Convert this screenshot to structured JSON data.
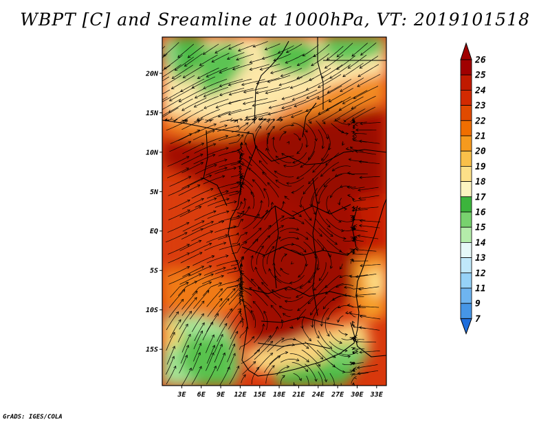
{
  "title": "WBPT [C] and Sreamline at 1000hPa, VT: 2019101518",
  "footer": "GrADS: IGES/COLA",
  "map": {
    "lat_labels": [
      "20N",
      "15N",
      "10N",
      "5N",
      "EQ",
      "5S",
      "10S",
      "15S"
    ],
    "lat_values": [
      20,
      15,
      10,
      5,
      0,
      -5,
      -10,
      -15
    ],
    "lon_labels": [
      "3E",
      "6E",
      "9E",
      "12E",
      "15E",
      "18E",
      "21E",
      "24E",
      "27E",
      "30E",
      "33E"
    ],
    "lon_values": [
      3,
      6,
      9,
      12,
      15,
      18,
      21,
      24,
      27,
      30,
      33
    ],
    "lon_range": [
      0,
      34.5
    ],
    "lat_range": [
      -19.6,
      24.6
    ]
  },
  "colorbar": {
    "labels": [
      "26",
      "25",
      "24",
      "23",
      "22",
      "21",
      "20",
      "19",
      "18",
      "17",
      "16",
      "15",
      "14",
      "13",
      "12",
      "11",
      "9",
      "7"
    ],
    "colors": [
      "#a00000",
      "#c01a00",
      "#d22a00",
      "#e04a00",
      "#f06e00",
      "#f69a1e",
      "#fac04a",
      "#fde088",
      "#fcf4c0",
      "#3cb43c",
      "#78d26e",
      "#b4ecaa",
      "#e6f8f8",
      "#c0e8fa",
      "#96d2f8",
      "#6eb4f0",
      "#4696e6",
      "#1e6edc"
    ],
    "top_color": "#a00000",
    "bottom_color": "#1e6edc"
  }
}
